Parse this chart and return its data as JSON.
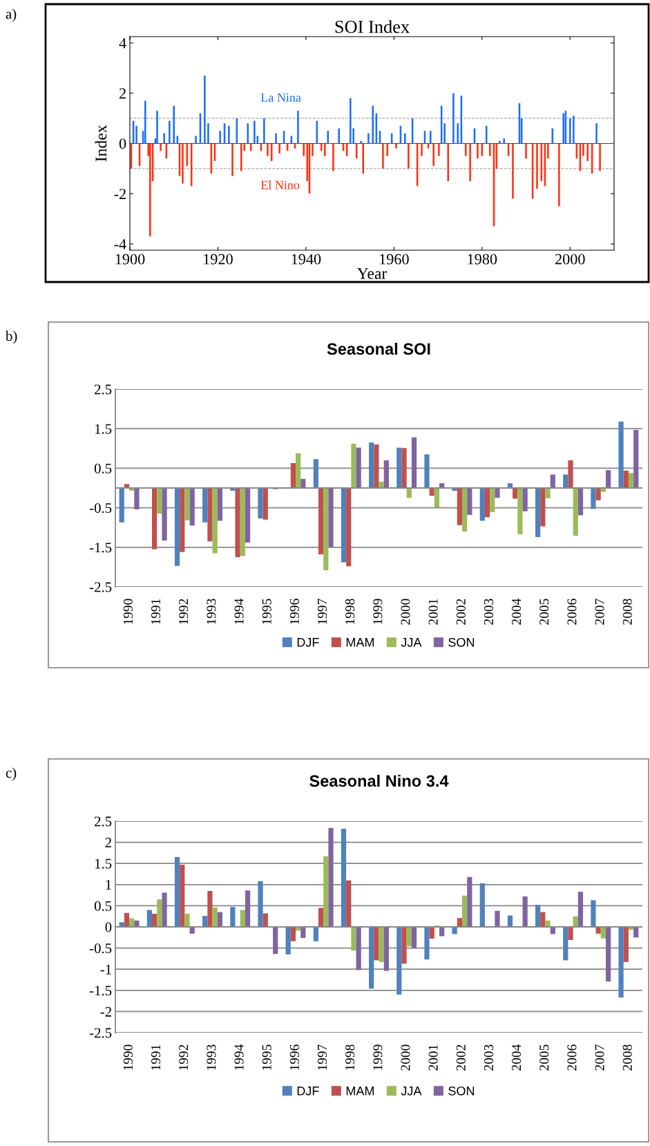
{
  "chart_data": [
    {
      "type": "bar",
      "title": "SOI Index",
      "xlabel": "Year",
      "ylabel": "Index",
      "xlim": [
        1900,
        2010
      ],
      "xticks": [
        1900,
        1920,
        1940,
        1960,
        1980,
        2000
      ],
      "ylim": [
        -4.25,
        4.25
      ],
      "yticks": [
        -4,
        -2,
        0,
        2,
        4
      ],
      "ref_lines": [
        {
          "axis": "y",
          "value": 1,
          "color": "#aaaaaa",
          "line_style": "dashed"
        },
        {
          "axis": "y",
          "value": -1,
          "color": "#aaaaaa",
          "line_style": "dashed"
        }
      ],
      "annotations": [
        "a)",
        "La Nina",
        "El Nino"
      ],
      "x": [
        1900.3,
        1900.8,
        1901.5,
        1902.2,
        1903.0,
        1903.5,
        1904.2,
        1904.6,
        1905.2,
        1905.8,
        1906.2,
        1907,
        1907.8,
        1908.3,
        1909,
        1910,
        1910.8,
        1911.3,
        1912,
        1913,
        1914,
        1915,
        1916,
        1917,
        1917.8,
        1918.5,
        1919.3,
        1920.5,
        1921.5,
        1922.5,
        1923.3,
        1924.3,
        1925.3,
        1926,
        1926.8,
        1927.5,
        1928.3,
        1929,
        1929.8,
        1930.5,
        1931.3,
        1932.2,
        1933.2,
        1934,
        1935,
        1935.8,
        1936.7,
        1937.5,
        1938.2,
        1939.5,
        1940.3,
        1940.8,
        1941.5,
        1942.5,
        1943.5,
        1944.3,
        1945,
        1946.2,
        1947.5,
        1948.5,
        1949.3,
        1950.1,
        1950.8,
        1951.5,
        1952.5,
        1953,
        1954.2,
        1955.2,
        1956,
        1956.8,
        1957.5,
        1958.5,
        1959.5,
        1960.5,
        1961.5,
        1962.5,
        1963.3,
        1964.2,
        1965.3,
        1966.3,
        1967,
        1967.8,
        1968.3,
        1969,
        1970.2,
        1970.8,
        1971.5,
        1972.3,
        1973.5,
        1974.5,
        1975.3,
        1976.3,
        1977.3,
        1978.3,
        1979,
        1980,
        1981,
        1981.8,
        1982.7,
        1983.3,
        1984,
        1985,
        1986,
        1987,
        1988.5,
        1989,
        1990,
        1991.5,
        1992.5,
        1993.5,
        1994.3,
        1995,
        1996,
        1997.5,
        1998.5,
        1999,
        2000,
        2000.8,
        2001.5,
        2002.3,
        2003,
        2004,
        2005,
        2006,
        2006.8
      ],
      "values": [
        -1.0,
        0.9,
        0.7,
        -0.9,
        0.5,
        1.7,
        -0.5,
        -3.7,
        -1.5,
        0.2,
        1.3,
        -0.3,
        0.4,
        -0.6,
        0.9,
        1.5,
        0.3,
        -1.3,
        -1.6,
        -0.9,
        -1.7,
        0.3,
        1.2,
        2.7,
        0.8,
        -1.2,
        -0.7,
        0.5,
        0.8,
        0.7,
        -1.3,
        1.0,
        -1.1,
        -0.3,
        0.8,
        -0.3,
        0.9,
        0.3,
        -0.3,
        1.0,
        -0.5,
        -0.7,
        0.4,
        -0.4,
        0.5,
        -0.3,
        0.3,
        -0.2,
        1.3,
        -0.5,
        -1.5,
        -2.0,
        -0.5,
        0.9,
        -0.3,
        -0.5,
        0.5,
        -1.1,
        0.6,
        -0.3,
        -0.5,
        1.8,
        0.6,
        -0.6,
        0.1,
        -1.2,
        0.4,
        1.5,
        1.2,
        0.5,
        -1.0,
        -0.5,
        0.4,
        -0.2,
        0.7,
        0.4,
        -1.0,
        1.0,
        -1.7,
        -0.5,
        0.5,
        -0.2,
        0.5,
        -0.9,
        -0.5,
        1.5,
        0.8,
        -1.5,
        2.0,
        0.8,
        1.9,
        -0.5,
        -1.5,
        0.6,
        -0.6,
        -0.5,
        0.7,
        -0.5,
        -3.3,
        -1.0,
        0.1,
        0.2,
        -0.5,
        -2.2,
        1.6,
        1.0,
        -0.6,
        -2.2,
        -1.8,
        -1.5,
        -1.7,
        -0.6,
        0.6,
        -2.5,
        1.2,
        1.3,
        1.0,
        1.1,
        -0.6,
        -1.1,
        -0.5,
        -0.7,
        -1.2,
        0.8,
        -1.1
      ],
      "colors": [
        "#ff3010",
        "#1a6cff",
        "#1a6cff",
        "#ff3010",
        "#1a6cff",
        "#1a6cff",
        "#ff3010",
        "#ff3010",
        "#ff3010",
        "#1a6cff",
        "#1a6cff",
        "#ff3010",
        "#1a6cff",
        "#ff3010",
        "#1a6cff",
        "#1a6cff",
        "#1a6cff",
        "#ff3010",
        "#ff3010",
        "#ff3010",
        "#ff3010",
        "#1a6cff",
        "#1a6cff",
        "#1a6cff",
        "#1a6cff",
        "#ff3010",
        "#ff3010",
        "#1a6cff",
        "#1a6cff",
        "#1a6cff",
        "#ff3010",
        "#1a6cff",
        "#ff3010",
        "#ff3010",
        "#1a6cff",
        "#ff3010",
        "#1a6cff",
        "#1a6cff",
        "#ff3010",
        "#1a6cff",
        "#ff3010",
        "#ff3010",
        "#1a6cff",
        "#ff3010",
        "#1a6cff",
        "#ff3010",
        "#1a6cff",
        "#ff3010",
        "#1a6cff",
        "#ff3010",
        "#ff3010",
        "#ff3010",
        "#ff3010",
        "#1a6cff",
        "#ff3010",
        "#ff3010",
        "#1a6cff",
        "#ff3010",
        "#1a6cff",
        "#ff3010",
        "#ff3010",
        "#1a6cff",
        "#1a6cff",
        "#ff3010",
        "#1a6cff",
        "#ff3010",
        "#1a6cff",
        "#1a6cff",
        "#1a6cff",
        "#1a6cff",
        "#ff3010",
        "#ff3010",
        "#1a6cff",
        "#ff3010",
        "#1a6cff",
        "#1a6cff",
        "#ff3010",
        "#1a6cff",
        "#ff3010",
        "#ff3010",
        "#1a6cff",
        "#ff3010",
        "#1a6cff",
        "#ff3010",
        "#ff3010",
        "#1a6cff",
        "#1a6cff",
        "#ff3010",
        "#1a6cff",
        "#1a6cff",
        "#1a6cff",
        "#ff3010",
        "#ff3010",
        "#1a6cff",
        "#ff3010",
        "#ff3010",
        "#1a6cff",
        "#ff3010",
        "#ff3010",
        "#ff3010",
        "#1a6cff",
        "#1a6cff",
        "#ff3010",
        "#ff3010",
        "#1a6cff",
        "#1a6cff",
        "#ff3010",
        "#ff3010",
        "#ff3010",
        "#ff3010",
        "#ff3010",
        "#ff3010",
        "#1a6cff",
        "#ff3010",
        "#1a6cff",
        "#1a6cff",
        "#1a6cff",
        "#1a6cff",
        "#ff3010",
        "#ff3010",
        "#ff3010",
        "#ff3010",
        "#ff3010",
        "#1a6cff",
        "#ff3010"
      ]
    },
    {
      "type": "bar",
      "title": "Seasonal SOI",
      "annotations": [
        "b)"
      ],
      "ylim": [
        -2.5,
        2.5
      ],
      "yticks": [
        -2.5,
        -1.5,
        -0.5,
        0.5,
        1.5,
        2.5
      ],
      "grid": "y",
      "legend": "bottom",
      "categories": [
        "1990",
        "1991",
        "1992",
        "1993",
        "1994",
        "1995",
        "1996",
        "1997",
        "1998",
        "1999",
        "2000",
        "2001",
        "2002",
        "2003",
        "2004",
        "2005",
        "2006",
        "2007",
        "2008"
      ],
      "series": [
        {
          "name": "DJF",
          "color": "#4f81bd",
          "values": [
            -0.87,
            null,
            -1.97,
            -0.87,
            -0.07,
            -0.77,
            null,
            0.73,
            -1.88,
            1.15,
            1.02,
            0.85,
            -0.07,
            -0.83,
            0.12,
            -1.24,
            0.34,
            -0.53,
            1.68
          ]
        },
        {
          "name": "MAM",
          "color": "#c0504d",
          "values": [
            0.1,
            -1.55,
            -1.62,
            -1.35,
            -1.75,
            -0.8,
            0.63,
            -1.68,
            -1.98,
            1.1,
            1.01,
            -0.2,
            -0.94,
            -0.74,
            -0.27,
            -0.97,
            0.7,
            -0.31,
            0.44
          ]
        },
        {
          "name": "JJA",
          "color": "#9bbb59",
          "values": [
            -0.07,
            -0.65,
            -0.82,
            -1.65,
            -1.72,
            null,
            0.88,
            -2.08,
            1.12,
            0.16,
            -0.25,
            -0.49,
            -1.1,
            -0.61,
            -1.17,
            -0.26,
            -1.21,
            -0.1,
            0.38
          ]
        },
        {
          "name": "SON",
          "color": "#8064a2",
          "values": [
            -0.54,
            -1.33,
            -0.95,
            -0.83,
            -1.38,
            -0.03,
            0.23,
            -1.5,
            1.02,
            0.7,
            1.28,
            0.12,
            -0.68,
            -0.25,
            -0.59,
            0.34,
            -0.69,
            0.45,
            1.47
          ]
        }
      ]
    },
    {
      "type": "bar",
      "title": "Seasonal Nino 3.4",
      "annotations": [
        "c)"
      ],
      "ylim": [
        -2.5,
        2.5
      ],
      "yticks": [
        -2.5,
        -2,
        -1.5,
        -1,
        -0.5,
        0,
        0.5,
        1,
        1.5,
        2,
        2.5
      ],
      "grid": "y",
      "legend": "bottom",
      "categories": [
        "1990",
        "1991",
        "1992",
        "1993",
        "1994",
        "1995",
        "1996",
        "1997",
        "1998",
        "1999",
        "2000",
        "2001",
        "2002",
        "2003",
        "2004",
        "2005",
        "2006",
        "2007",
        "2008"
      ],
      "series": [
        {
          "name": "DJF",
          "color": "#4f81bd",
          "values": [
            0.11,
            0.4,
            1.65,
            0.26,
            0.47,
            1.08,
            -0.65,
            -0.34,
            2.32,
            -1.46,
            -1.6,
            -0.77,
            -0.17,
            1.03,
            0.27,
            0.52,
            -0.79,
            0.63,
            -1.67
          ]
        },
        {
          "name": "MAM",
          "color": "#c0504d",
          "values": [
            0.33,
            0.31,
            1.47,
            0.85,
            null,
            0.32,
            -0.34,
            0.45,
            1.1,
            -0.79,
            -0.87,
            -0.28,
            0.21,
            null,
            null,
            0.35,
            -0.31,
            -0.16,
            -0.83
          ]
        },
        {
          "name": "JJA",
          "color": "#9bbb59",
          "values": [
            0.2,
            0.65,
            0.31,
            0.46,
            0.4,
            null,
            -0.09,
            1.67,
            -0.56,
            -0.83,
            -0.46,
            0.03,
            0.74,
            null,
            null,
            0.15,
            0.25,
            -0.27,
            -0.07
          ]
        },
        {
          "name": "SON",
          "color": "#8064a2",
          "values": [
            0.15,
            0.81,
            -0.16,
            0.35,
            0.86,
            -0.64,
            -0.26,
            2.34,
            -1.02,
            -1.04,
            -0.5,
            -0.22,
            1.18,
            0.38,
            0.72,
            -0.17,
            0.83,
            -1.29,
            -0.25
          ]
        }
      ]
    }
  ]
}
